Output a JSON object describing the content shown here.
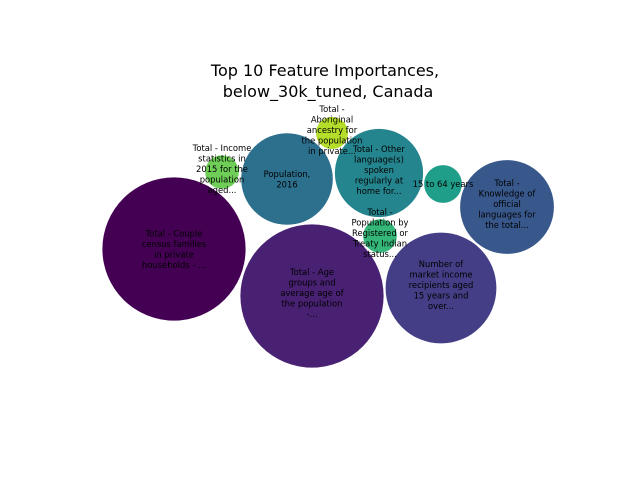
{
  "chart_data": {
    "type": "bubble",
    "title": "Top 10 Feature Importances,",
    "subtitle": "below_30k_tuned, Canada",
    "bubbles": [
      {
        "label": "Total - Couple census families in private households - ...",
        "lines": [
          "Total - Couple",
          "census families",
          "in private",
          "households - ..."
        ],
        "importance": 0.2,
        "color": "#440154"
      },
      {
        "label": "Total - Age groups and average age of the population - ...",
        "lines": [
          "Total - Age",
          "groups and",
          "average age of",
          "the population",
          "-..."
        ],
        "importance": 0.2,
        "color": "#482173"
      },
      {
        "label": "Number of market income recipients aged 15 years and over...",
        "lines": [
          "Number of",
          "market income",
          "recipients aged",
          "15 years and",
          "over..."
        ],
        "importance": 0.12,
        "color": "#433e85"
      },
      {
        "label": "Total - Knowledge of official languages for the total...",
        "lines": [
          "Total -",
          "Knowledge of",
          "official",
          "languages for",
          "the total..."
        ],
        "importance": 0.086,
        "color": "#38588c"
      },
      {
        "label": "Population, 2016",
        "lines": [
          "Population,",
          "2016"
        ],
        "importance": 0.082,
        "color": "#2d708e"
      },
      {
        "label": "Total - Other language(s) spoken regularly at home for...",
        "lines": [
          "Total - Other",
          "language(s)",
          "spoken",
          "regularly at",
          "home for..."
        ],
        "importance": 0.076,
        "color": "#25858e"
      },
      {
        "label": "15 to 64 years",
        "lines": [
          "15 to 64 years"
        ],
        "importance": 0.014,
        "color": "#1f9e89"
      },
      {
        "label": "Total - Population by Registered or Treaty Indian status...",
        "lines": [
          "Total -",
          "Population by",
          "Registered or",
          "Treaty Indian",
          "status..."
        ],
        "importance": 0.011,
        "color": "#35b779"
      },
      {
        "label": "Total - Income statistics in 2015 for the population aged...",
        "lines": [
          "Total - Income",
          "statistics in",
          "2015 for the",
          "population",
          "aged..."
        ],
        "importance": 0.011,
        "color": "#6ece58"
      },
      {
        "label": "Total - Aboriginal ancestry for the population in private...",
        "lines": [
          "Total -",
          "Aboriginal",
          "ancestry for",
          "the population",
          "in private..."
        ],
        "importance": 0.01,
        "color": "#b5de2b"
      }
    ]
  }
}
